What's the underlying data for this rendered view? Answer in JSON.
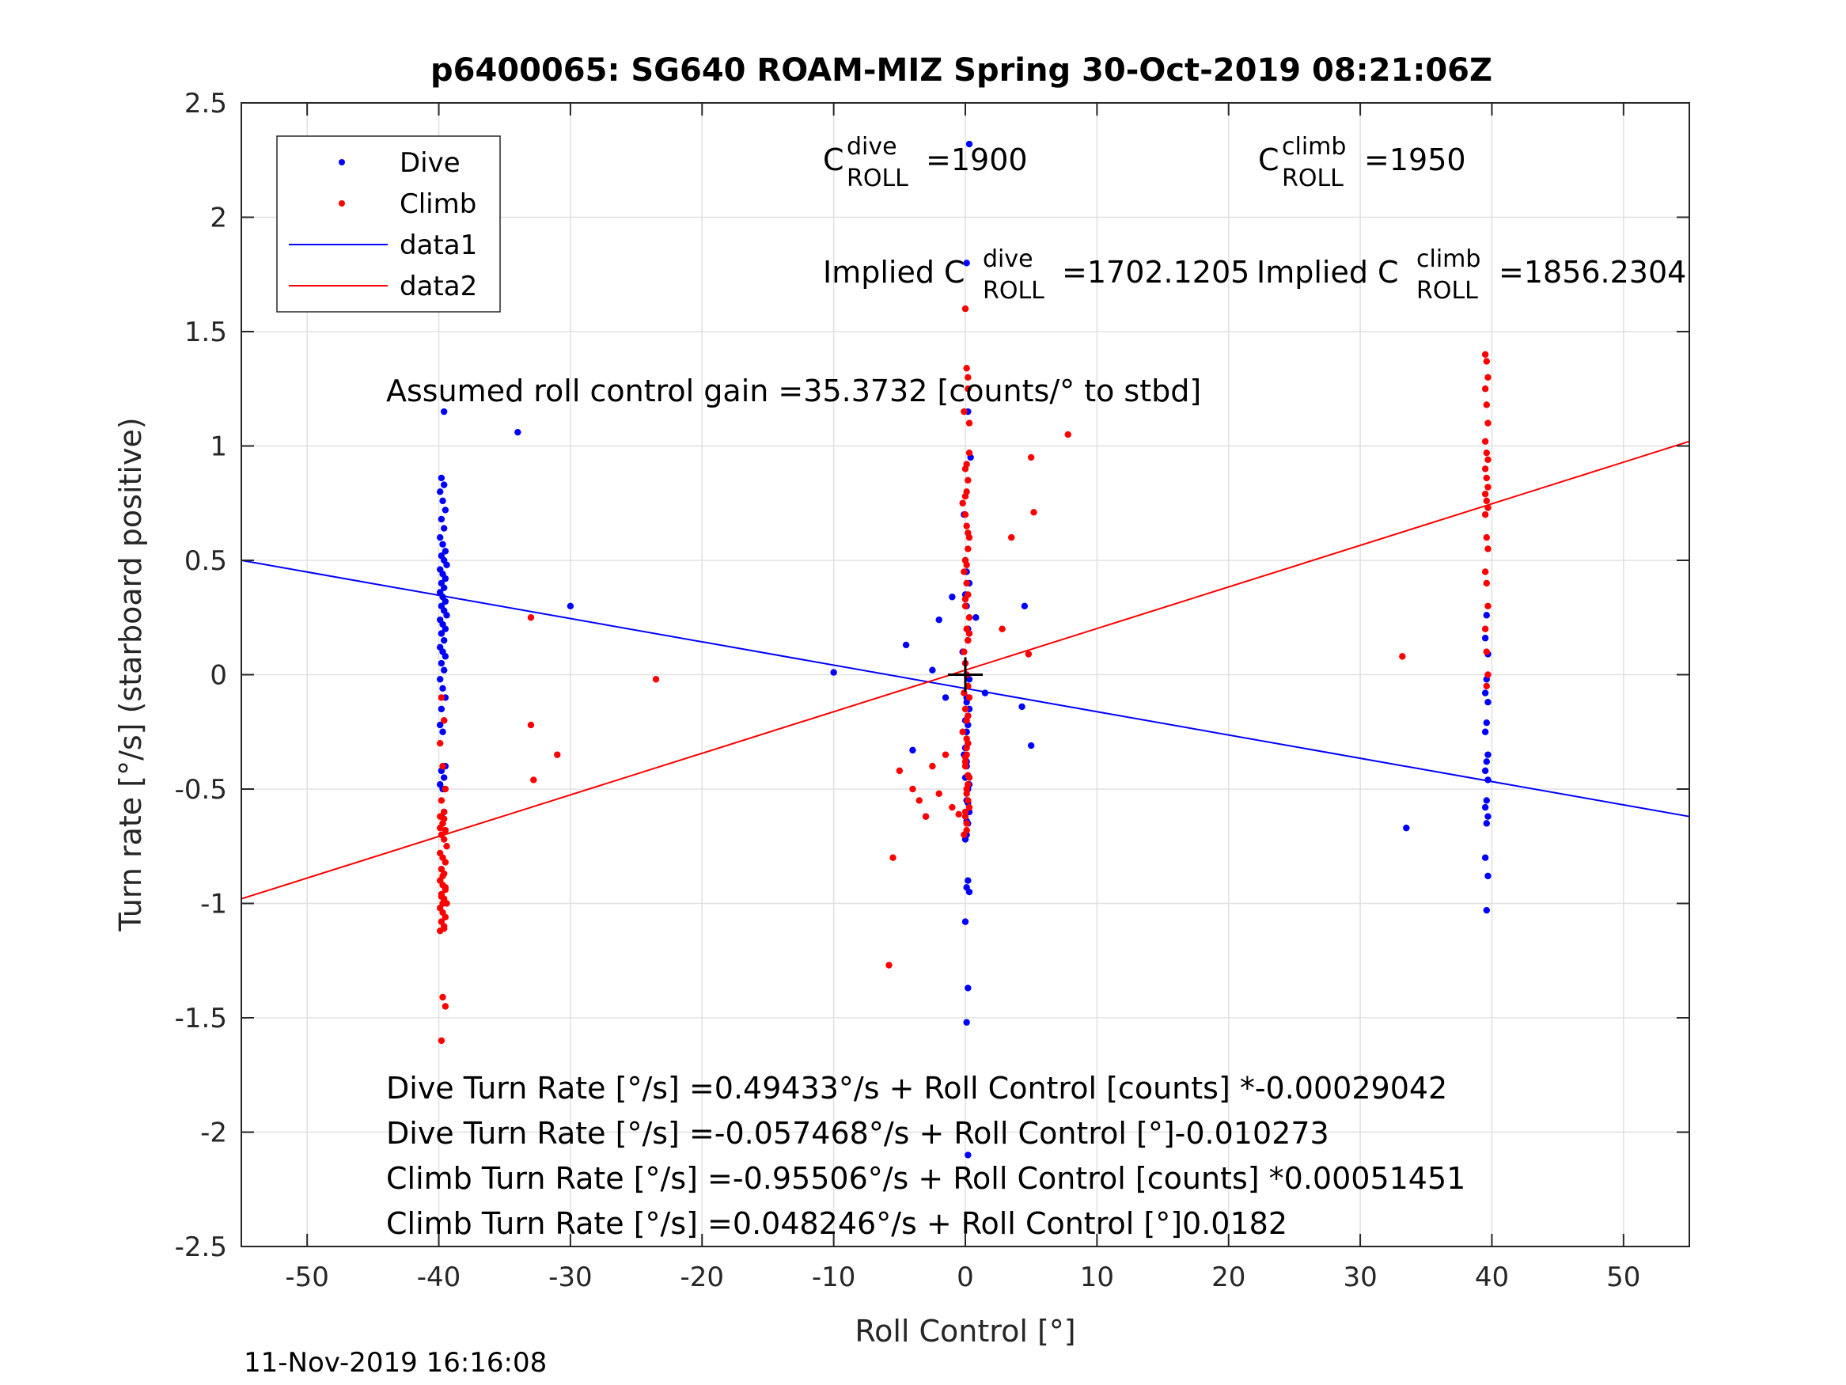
{
  "title": "p6400065: SG640 ROAM-MIZ Spring 30-Oct-2019 08:21:06Z",
  "timestamp": "11-Nov-2019 16:16:08",
  "annotations": {
    "c_dive_base": "C",
    "c_dive_sup": "dive",
    "c_dive_sub": "ROLL",
    "c_dive_val": "=1900",
    "c_climb_base": "C",
    "c_climb_sup": "climb",
    "c_climb_sub": "ROLL",
    "c_climb_val": "=1950",
    "implied_dive_base": "Implied C",
    "implied_dive_sup": "dive",
    "implied_dive_sub": "ROLL",
    "implied_dive_val": "=1702.1205",
    "implied_climb_base": "Implied C",
    "implied_climb_sup": "climb",
    "implied_climb_sub": "ROLL",
    "implied_climb_val": "=1856.2304",
    "gain": "Assumed roll control gain =35.3732 [counts/° to stbd]",
    "eq1": "Dive Turn Rate [°/s] =0.49433°/s + Roll Control [counts] *-0.00029042",
    "eq2": "Dive Turn Rate [°/s] =-0.057468°/s + Roll Control [°]-0.010273",
    "eq3": "Climb Turn Rate [°/s] =-0.95506°/s + Roll Control [counts] *0.00051451",
    "eq4": "Climb Turn Rate [°/s] =0.048246°/s + Roll Control [°]0.0182"
  },
  "colors": {
    "dive": "#0000ff",
    "climb": "#ff0000",
    "axis": "#262626",
    "grid": "#e0e0e0"
  },
  "chart_data": {
    "type": "scatter",
    "xlabel": "Roll Control [°]",
    "ylabel": "Turn rate [°/s] (starboard positive)",
    "xlim": [
      -55,
      55
    ],
    "ylim": [
      -2.5,
      2.5
    ],
    "xticks": [
      -50,
      -40,
      -30,
      -20,
      -10,
      0,
      10,
      20,
      30,
      40,
      50
    ],
    "yticks": [
      -2.5,
      -2,
      -1.5,
      -1,
      -0.5,
      0,
      0.5,
      1,
      1.5,
      2,
      2.5
    ],
    "xtick_labels": [
      "-50",
      "-40",
      "-30",
      "-20",
      "-10",
      "0",
      "10",
      "20",
      "30",
      "40",
      "50"
    ],
    "ytick_labels": [
      "-2.5",
      "-2",
      "-1.5",
      "-1",
      "-0.5",
      "0",
      "0.5",
      "1",
      "1.5",
      "2",
      "2.5"
    ],
    "grid": true,
    "legend": {
      "position": "top-left",
      "entries": [
        {
          "label": "Dive",
          "kind": "marker",
          "color": "#0000ff"
        },
        {
          "label": "Climb",
          "kind": "marker",
          "color": "#ff0000"
        },
        {
          "label": "data1",
          "kind": "line",
          "color": "#0000ff"
        },
        {
          "label": "data2",
          "kind": "line",
          "color": "#ff0000"
        }
      ]
    },
    "lines": [
      {
        "name": "data1",
        "color": "#0000ff",
        "x": [
          -55,
          55
        ],
        "y": [
          0.5,
          -0.62
        ]
      },
      {
        "name": "data2",
        "color": "#ff0000",
        "x": [
          -55,
          55
        ],
        "y": [
          -0.98,
          1.02
        ]
      }
    ],
    "crosshair": {
      "x": 0,
      "y": 0
    },
    "series": [
      {
        "name": "Dive",
        "color": "#0000ff",
        "x": [
          -39.8,
          -39.6,
          -39.9,
          -39.7,
          -39.5,
          -39.8,
          -39.6,
          -39.9,
          -39.7,
          -39.5,
          -39.8,
          -39.6,
          -39.4,
          -39.9,
          -39.7,
          -39.5,
          -39.8,
          -39.6,
          -39.9,
          -39.7,
          -39.5,
          -39.8,
          -39.6,
          -39.4,
          -39.9,
          -39.7,
          -39.5,
          -39.8,
          -39.6,
          -39.9,
          -39.7,
          -39.5,
          -39.8,
          -39.6,
          -39.9,
          -39.7,
          -39.5,
          -39.8,
          -39.6,
          -39.9,
          -39.7,
          -39.5,
          -39.8,
          -39.6,
          -39.9,
          -39.7,
          -39.6,
          -39.8,
          -39.7,
          -39.6,
          -34.0,
          -30.0,
          -10.0,
          -4.5,
          -4.0,
          -3.0,
          -2.5,
          -2.0,
          -1.5,
          -1.0,
          4.5,
          5.0,
          4.3,
          1.5,
          0.8,
          0.3,
          0.1,
          0.2,
          0.4,
          -0.1,
          0.0,
          0.3,
          0.1,
          0.2,
          -0.2,
          0.0,
          0.2,
          0.1,
          0.3,
          0.0,
          0.1,
          0.2,
          -0.1,
          0.1,
          0.0,
          0.2,
          0.1,
          0.3,
          0.2,
          0.1,
          0.0,
          0.2,
          0.1,
          0.3,
          0.0,
          0.2,
          0.1,
          0.2,
          0.1,
          0.0,
          0.2,
          0.3,
          0.1,
          0.2,
          0.0,
          0.1,
          0.3,
          0.2,
          0.1,
          0.2,
          33.5,
          39.6,
          39.5,
          39.7,
          39.6,
          39.5,
          39.7,
          39.6,
          39.5,
          39.7,
          39.6,
          39.5,
          39.7,
          39.6,
          39.5,
          39.7,
          39.6,
          39.5,
          39.7,
          39.6
        ],
        "y": [
          0.86,
          0.83,
          0.8,
          0.76,
          0.72,
          0.68,
          0.64,
          0.6,
          0.57,
          0.54,
          0.52,
          0.5,
          0.48,
          0.46,
          0.44,
          0.42,
          0.4,
          0.38,
          0.36,
          0.34,
          0.32,
          0.3,
          0.28,
          0.26,
          0.24,
          0.22,
          0.2,
          0.18,
          0.15,
          0.12,
          0.1,
          0.08,
          0.05,
          0.02,
          -0.02,
          -0.06,
          -0.1,
          -0.15,
          -0.2,
          -0.22,
          -0.25,
          -0.4,
          -0.42,
          -0.45,
          -0.48,
          -0.5,
          -0.6,
          -0.62,
          -0.65,
          1.15,
          1.06,
          0.3,
          0.01,
          0.13,
          -0.33,
          -0.62,
          0.02,
          0.24,
          -0.1,
          0.34,
          0.3,
          -0.31,
          -0.14,
          -0.08,
          0.25,
          2.32,
          1.8,
          1.15,
          0.95,
          0.7,
          0.5,
          0.4,
          0.3,
          0.2,
          0.1,
          0.05,
          -0.05,
          -0.1,
          -0.15,
          -0.2,
          -0.25,
          -0.3,
          -0.35,
          -0.4,
          -0.45,
          -0.5,
          -0.55,
          -0.6,
          -0.65,
          -0.7,
          -0.72,
          -0.9,
          -0.93,
          -0.95,
          -1.08,
          -1.37,
          -1.52,
          -2.1,
          0.45,
          0.35,
          0.15,
          -0.02,
          -0.12,
          -0.22,
          -0.32,
          -0.38,
          -0.48,
          -0.56,
          -0.64,
          -0.18,
          -0.67,
          0.26,
          0.16,
          0.09,
          -0.02,
          -0.08,
          -0.12,
          -0.21,
          -0.25,
          -0.35,
          -0.38,
          -0.42,
          -0.46,
          -0.55,
          -0.58,
          -0.62,
          -0.65,
          -0.8,
          -0.88,
          -1.03
        ]
      },
      {
        "name": "Climb",
        "color": "#ff0000",
        "x": [
          -39.8,
          -39.6,
          -39.9,
          -39.7,
          -39.5,
          -39.8,
          -39.6,
          -39.9,
          -39.7,
          -39.5,
          -39.8,
          -39.6,
          -39.4,
          -39.9,
          -39.7,
          -39.5,
          -39.8,
          -39.6,
          -39.9,
          -39.7,
          -39.5,
          -39.8,
          -39.6,
          -39.4,
          -39.9,
          -39.7,
          -39.5,
          -39.8,
          -39.6,
          -39.9,
          -39.7,
          -39.5,
          -39.8,
          -39.6,
          -39.9,
          -39.7,
          -39.5,
          -39.8,
          -39.6,
          -39.7,
          -33.0,
          -33.0,
          -32.8,
          -31.0,
          -23.5,
          -5.5,
          -5.0,
          -4.0,
          -3.5,
          -3.0,
          -2.5,
          -2.0,
          -1.5,
          -1.0,
          -0.5,
          -5.8,
          5.0,
          5.2,
          3.5,
          2.8,
          4.8,
          7.8,
          0.0,
          0.1,
          0.2,
          -0.1,
          0.3,
          0.0,
          0.2,
          0.1,
          -0.2,
          0.0,
          0.1,
          0.3,
          0.2,
          0.0,
          -0.1,
          0.1,
          0.2,
          0.0,
          0.3,
          0.1,
          0.2,
          -0.1,
          0.0,
          0.1,
          0.2,
          0.3,
          0.0,
          0.1,
          -0.2,
          0.2,
          0.1,
          0.0,
          0.3,
          0.1,
          0.2,
          0.0,
          0.1,
          -0.1,
          0.2,
          0.3,
          0.1,
          0.0,
          0.2,
          0.1,
          0.0,
          0.3,
          -0.1,
          0.2,
          0.1,
          0.0,
          0.2,
          0.1,
          0.3,
          0.0,
          0.1,
          0.2,
          0.0,
          0.1,
          33.2,
          39.5,
          39.6,
          39.7,
          39.5,
          39.6,
          39.7,
          39.5,
          39.6,
          39.7,
          39.5,
          39.6,
          39.7,
          39.5,
          39.6,
          39.7,
          39.5,
          39.6,
          39.7,
          39.5,
          39.6,
          39.7,
          39.5,
          39.6,
          39.7,
          39.6
        ],
        "y": [
          -0.1,
          -0.2,
          -0.3,
          -0.4,
          -0.5,
          -0.55,
          -0.6,
          -0.62,
          -0.65,
          -0.68,
          -0.7,
          -0.72,
          -0.75,
          -0.78,
          -0.8,
          -0.82,
          -0.85,
          -0.87,
          -0.9,
          -0.92,
          -0.94,
          -0.96,
          -0.98,
          -1.0,
          -1.02,
          -1.04,
          -1.06,
          -1.08,
          -1.1,
          -1.12,
          -1.41,
          -1.45,
          -1.6,
          -0.63,
          -0.67,
          -0.88,
          -0.93,
          -0.97,
          -1.11,
          -1.0,
          0.25,
          -0.22,
          -0.46,
          -0.35,
          -0.02,
          -0.8,
          -0.42,
          -0.5,
          -0.55,
          -0.62,
          -0.4,
          -0.52,
          -0.35,
          -0.58,
          -0.61,
          -1.27,
          0.95,
          0.71,
          0.6,
          0.2,
          0.09,
          1.05,
          1.6,
          1.34,
          1.3,
          1.15,
          0.97,
          0.9,
          0.85,
          0.8,
          0.75,
          0.7,
          0.65,
          0.6,
          0.55,
          0.5,
          0.45,
          0.4,
          0.35,
          0.3,
          0.25,
          0.2,
          0.15,
          0.1,
          0.05,
          0.0,
          -0.05,
          -0.1,
          -0.15,
          -0.2,
          -0.25,
          -0.3,
          -0.35,
          -0.4,
          -0.45,
          -0.5,
          -0.55,
          -0.6,
          -0.65,
          -0.7,
          1.25,
          1.1,
          0.92,
          0.78,
          0.62,
          0.48,
          0.33,
          0.18,
          -0.08,
          -0.18,
          -0.28,
          -0.38,
          -0.48,
          -0.52,
          -0.58,
          -0.62,
          -0.68,
          -0.44,
          -0.36,
          -0.32,
          0.08,
          1.4,
          1.37,
          1.3,
          1.25,
          1.18,
          1.1,
          1.02,
          0.97,
          0.94,
          0.9,
          0.86,
          0.82,
          0.79,
          0.76,
          0.73,
          0.7,
          0.6,
          0.55,
          0.45,
          0.4,
          0.3,
          0.2,
          0.1,
          0.0,
          -0.05
        ]
      }
    ]
  }
}
